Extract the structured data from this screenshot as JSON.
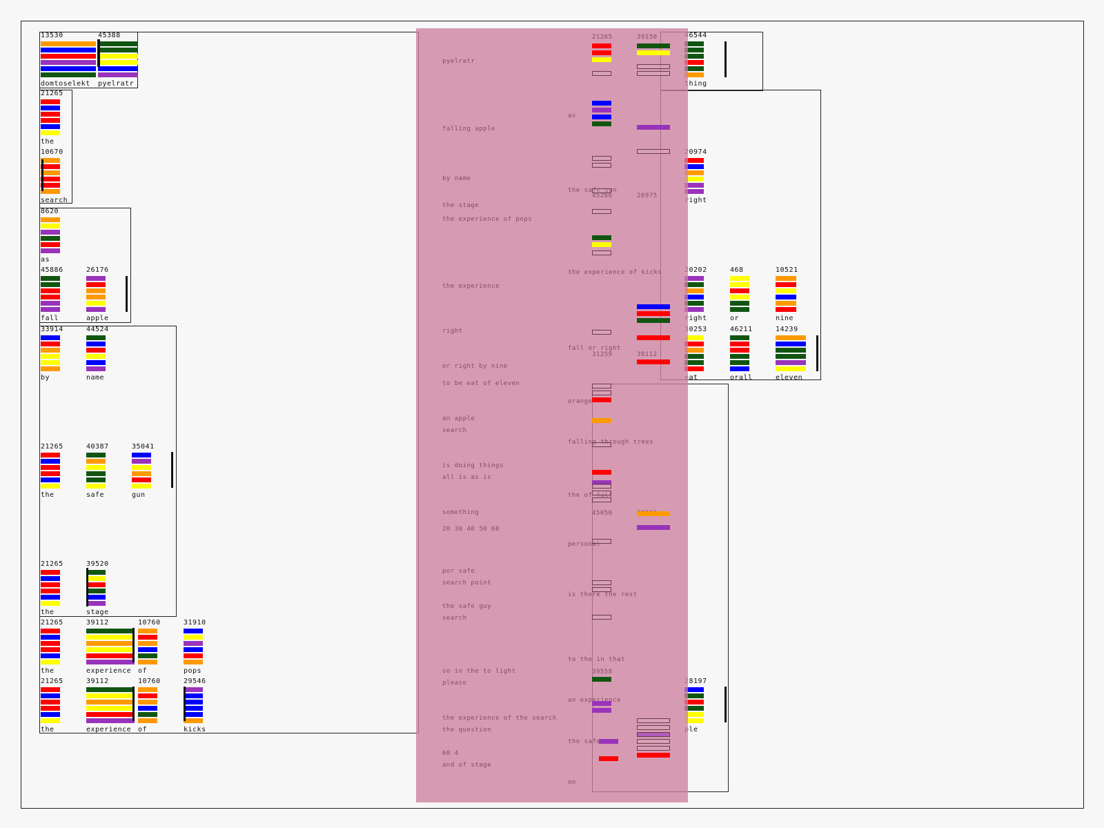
{
  "colors": {
    "orange": "#ff9900",
    "blue": "#0000ff",
    "red": "#ff0000",
    "purple": "#9933bb",
    "green": "#115511",
    "yellow": "#ffff00",
    "outline": "#d9a9b9",
    "overlay": "#d690ab"
  },
  "cells": [
    {
      "id": "c1",
      "num": "13530",
      "label": "domtoselekt",
      "bars": [
        "orange",
        "blue",
        "red",
        "purple",
        "blue",
        "green"
      ]
    },
    {
      "id": "c2",
      "num": "45388",
      "label": "pyelratr",
      "bars": [
        "green",
        "green",
        "yellow",
        "yellow",
        "blue",
        "purple"
      ]
    },
    {
      "id": "c3",
      "num": "21265",
      "label": "the",
      "bars": [
        "red",
        "blue",
        "red",
        "red",
        "blue",
        "yellow"
      ]
    },
    {
      "id": "c4",
      "num": "10670",
      "label": "search",
      "bars": [
        "orange",
        "red",
        "orange",
        "red",
        "red",
        "orange"
      ]
    },
    {
      "id": "c5",
      "num": "8620",
      "label": "as",
      "bars": [
        "orange",
        "yellow",
        "purple",
        "green",
        "red",
        "purple"
      ]
    },
    {
      "id": "c6",
      "num": "45886",
      "label": "fall",
      "bars": [
        "green",
        "green",
        "red",
        "red",
        "purple",
        "purple"
      ]
    },
    {
      "id": "c7",
      "num": "26176",
      "label": "apple",
      "bars": [
        "purple",
        "red",
        "orange",
        "orange",
        "yellow",
        "purple"
      ]
    },
    {
      "id": "c8",
      "num": "33914",
      "label": "by",
      "bars": [
        "blue",
        "red",
        "orange",
        "yellow",
        "yellow",
        "orange"
      ]
    },
    {
      "id": "c9",
      "num": "44524",
      "label": "name",
      "bars": [
        "green",
        "blue",
        "red",
        "yellow",
        "blue",
        "purple"
      ]
    },
    {
      "id": "c10",
      "num": "21265",
      "label": "the",
      "bars": [
        "red",
        "blue",
        "red",
        "red",
        "blue",
        "yellow"
      ]
    },
    {
      "id": "c11",
      "num": "40387",
      "label": "safe",
      "bars": [
        "green",
        "orange",
        "yellow",
        "green",
        "green",
        "yellow"
      ]
    },
    {
      "id": "c12",
      "num": "35041",
      "label": "gun",
      "bars": [
        "blue",
        "purple",
        "yellow",
        "orange",
        "red",
        "yellow"
      ]
    },
    {
      "id": "c13",
      "num": "21265",
      "label": "the",
      "bars": [
        "red",
        "blue",
        "red",
        "red",
        "blue",
        "yellow"
      ]
    },
    {
      "id": "c14",
      "num": "39520",
      "label": "stage",
      "bars": [
        "green",
        "yellow",
        "red",
        "green",
        "blue",
        "purple"
      ]
    },
    {
      "id": "c15",
      "num": "21265",
      "label": "the",
      "bars": [
        "red",
        "blue",
        "red",
        "red",
        "blue",
        "yellow"
      ]
    },
    {
      "id": "c16",
      "num": "39112",
      "label": "experience",
      "bars": [
        "green",
        "yellow",
        "orange",
        "yellow",
        "red",
        "purple"
      ]
    },
    {
      "id": "c17",
      "num": "10760",
      "label": "of",
      "bars": [
        "orange",
        "red",
        "orange",
        "blue",
        "green",
        "orange"
      ]
    },
    {
      "id": "c18",
      "num": "31910",
      "label": "pops",
      "bars": [
        "blue",
        "yellow",
        "purple",
        "blue",
        "red",
        "orange"
      ]
    },
    {
      "id": "c19",
      "num": "21265",
      "label": "the",
      "bars": [
        "red",
        "blue",
        "red",
        "red",
        "blue",
        "yellow"
      ]
    },
    {
      "id": "c20",
      "num": "39112",
      "label": "experience",
      "bars": [
        "green",
        "yellow",
        "orange",
        "yellow",
        "red",
        "purple"
      ]
    },
    {
      "id": "c21",
      "num": "10760",
      "label": "of",
      "bars": [
        "orange",
        "red",
        "orange",
        "blue",
        "green",
        "orange"
      ]
    },
    {
      "id": "c22",
      "num": "29546",
      "label": "kicks",
      "bars": [
        "purple",
        "blue",
        "blue",
        "blue",
        "blue",
        "orange"
      ]
    },
    {
      "id": "c23",
      "num": "46544",
      "label": "thing",
      "bars": [
        "green",
        "green",
        "green",
        "red",
        "green",
        "orange"
      ]
    },
    {
      "id": "c24",
      "num": "20974",
      "label": "right",
      "bars": [
        "red",
        "blue",
        "orange",
        "yellow",
        "purple",
        "purple"
      ]
    },
    {
      "id": "c25",
      "num": "20202",
      "label": "right",
      "bars": [
        "purple",
        "green",
        "orange",
        "blue",
        "green",
        "purple"
      ]
    },
    {
      "id": "c26",
      "num": "468",
      "label": "or",
      "bars": [
        "yellow",
        "yellow",
        "red",
        "yellow",
        "green",
        "green"
      ]
    },
    {
      "id": "c27",
      "num": "10521",
      "label": "nine",
      "bars": [
        "orange",
        "red",
        "yellow",
        "blue",
        "orange",
        "red"
      ]
    },
    {
      "id": "c28",
      "num": "30253",
      "label": "eat",
      "bars": [
        "yellow",
        "red",
        "orange",
        "green",
        "green",
        "red"
      ]
    },
    {
      "id": "c29",
      "num": "46211",
      "label": "orall",
      "bars": [
        "green",
        "red",
        "red",
        "green",
        "green",
        "blue"
      ]
    },
    {
      "id": "c30",
      "num": "14239",
      "label": "eleven",
      "bars": [
        "orange",
        "blue",
        "green",
        "green",
        "purple",
        "yellow"
      ]
    },
    {
      "id": "c31",
      "num": "28197",
      "label": "ple",
      "bars": [
        "blue",
        "green",
        "red",
        "green",
        "yellow",
        "yellow"
      ]
    }
  ],
  "overlay_text": [
    "pyelratr",
    "as",
    "falling apple",
    "by name",
    "the safe gun",
    "the stage",
    "the experience of pops",
    "the experience of kicks",
    "the experience",
    "right",
    "fall or right",
    "or right by nine",
    "to be eat of eleven",
    "orange",
    "an apple",
    "search",
    "falling through trees",
    "is doing things",
    "all is as is",
    "the of fall",
    "something",
    "20 30 40 50 60",
    "personal",
    "por safe",
    "search point",
    "is there the rest",
    "the safe guy",
    "search",
    "to the in that",
    "so in the to light",
    "please",
    "an experience",
    "the experience of the search",
    "the question",
    "the safe one",
    "60 4",
    "and of stage",
    "on"
  ],
  "overlay_numbers": [
    "21265",
    "39150",
    "45266",
    "20975",
    "31259",
    "39112",
    "45050",
    "20201",
    "39558"
  ]
}
